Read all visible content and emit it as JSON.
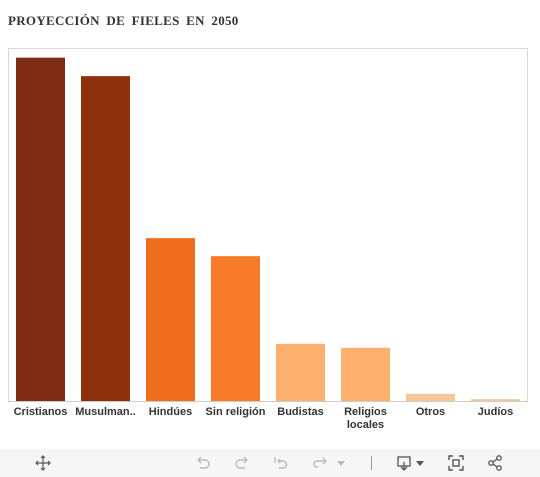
{
  "title": "PROYECCIÓN DE FIELES EN 2050",
  "chart_data": {
    "type": "bar",
    "title": "PROYECCIÓN DE FIELES EN 2050",
    "xlabel": "",
    "ylabel": "",
    "categories": [
      "Cristianos",
      "Musulman..",
      "Hindúes",
      "Sin religión",
      "Budistas",
      "Religios locales",
      "Otros",
      "Judíos"
    ],
    "category_lines": [
      [
        "Cristianos"
      ],
      [
        "Musulman.."
      ],
      [
        "Hindúes"
      ],
      [
        "Sin religión"
      ],
      [
        "Budistas"
      ],
      [
        "Religios",
        "locales"
      ],
      [
        "Otros"
      ],
      [
        "Judíos"
      ]
    ],
    "values": [
      2918,
      2761,
      1384,
      1231,
      486,
      452,
      61,
      16
    ],
    "colors": [
      "#7f2d14",
      "#8c300e",
      "#ef6d1f",
      "#f67a28",
      "#fbb06e",
      "#fbb06e",
      "#f7c698",
      "#f5c89e"
    ],
    "ylim": [
      0,
      3000
    ],
    "grid": false,
    "legend": "none"
  },
  "toolbar": {
    "icons": [
      "move-icon",
      "undo-icon",
      "redo-icon",
      "revert-icon",
      "refresh-icon",
      "dropdown-icon",
      "download-icon",
      "fullscreen-icon",
      "share-icon"
    ]
  }
}
